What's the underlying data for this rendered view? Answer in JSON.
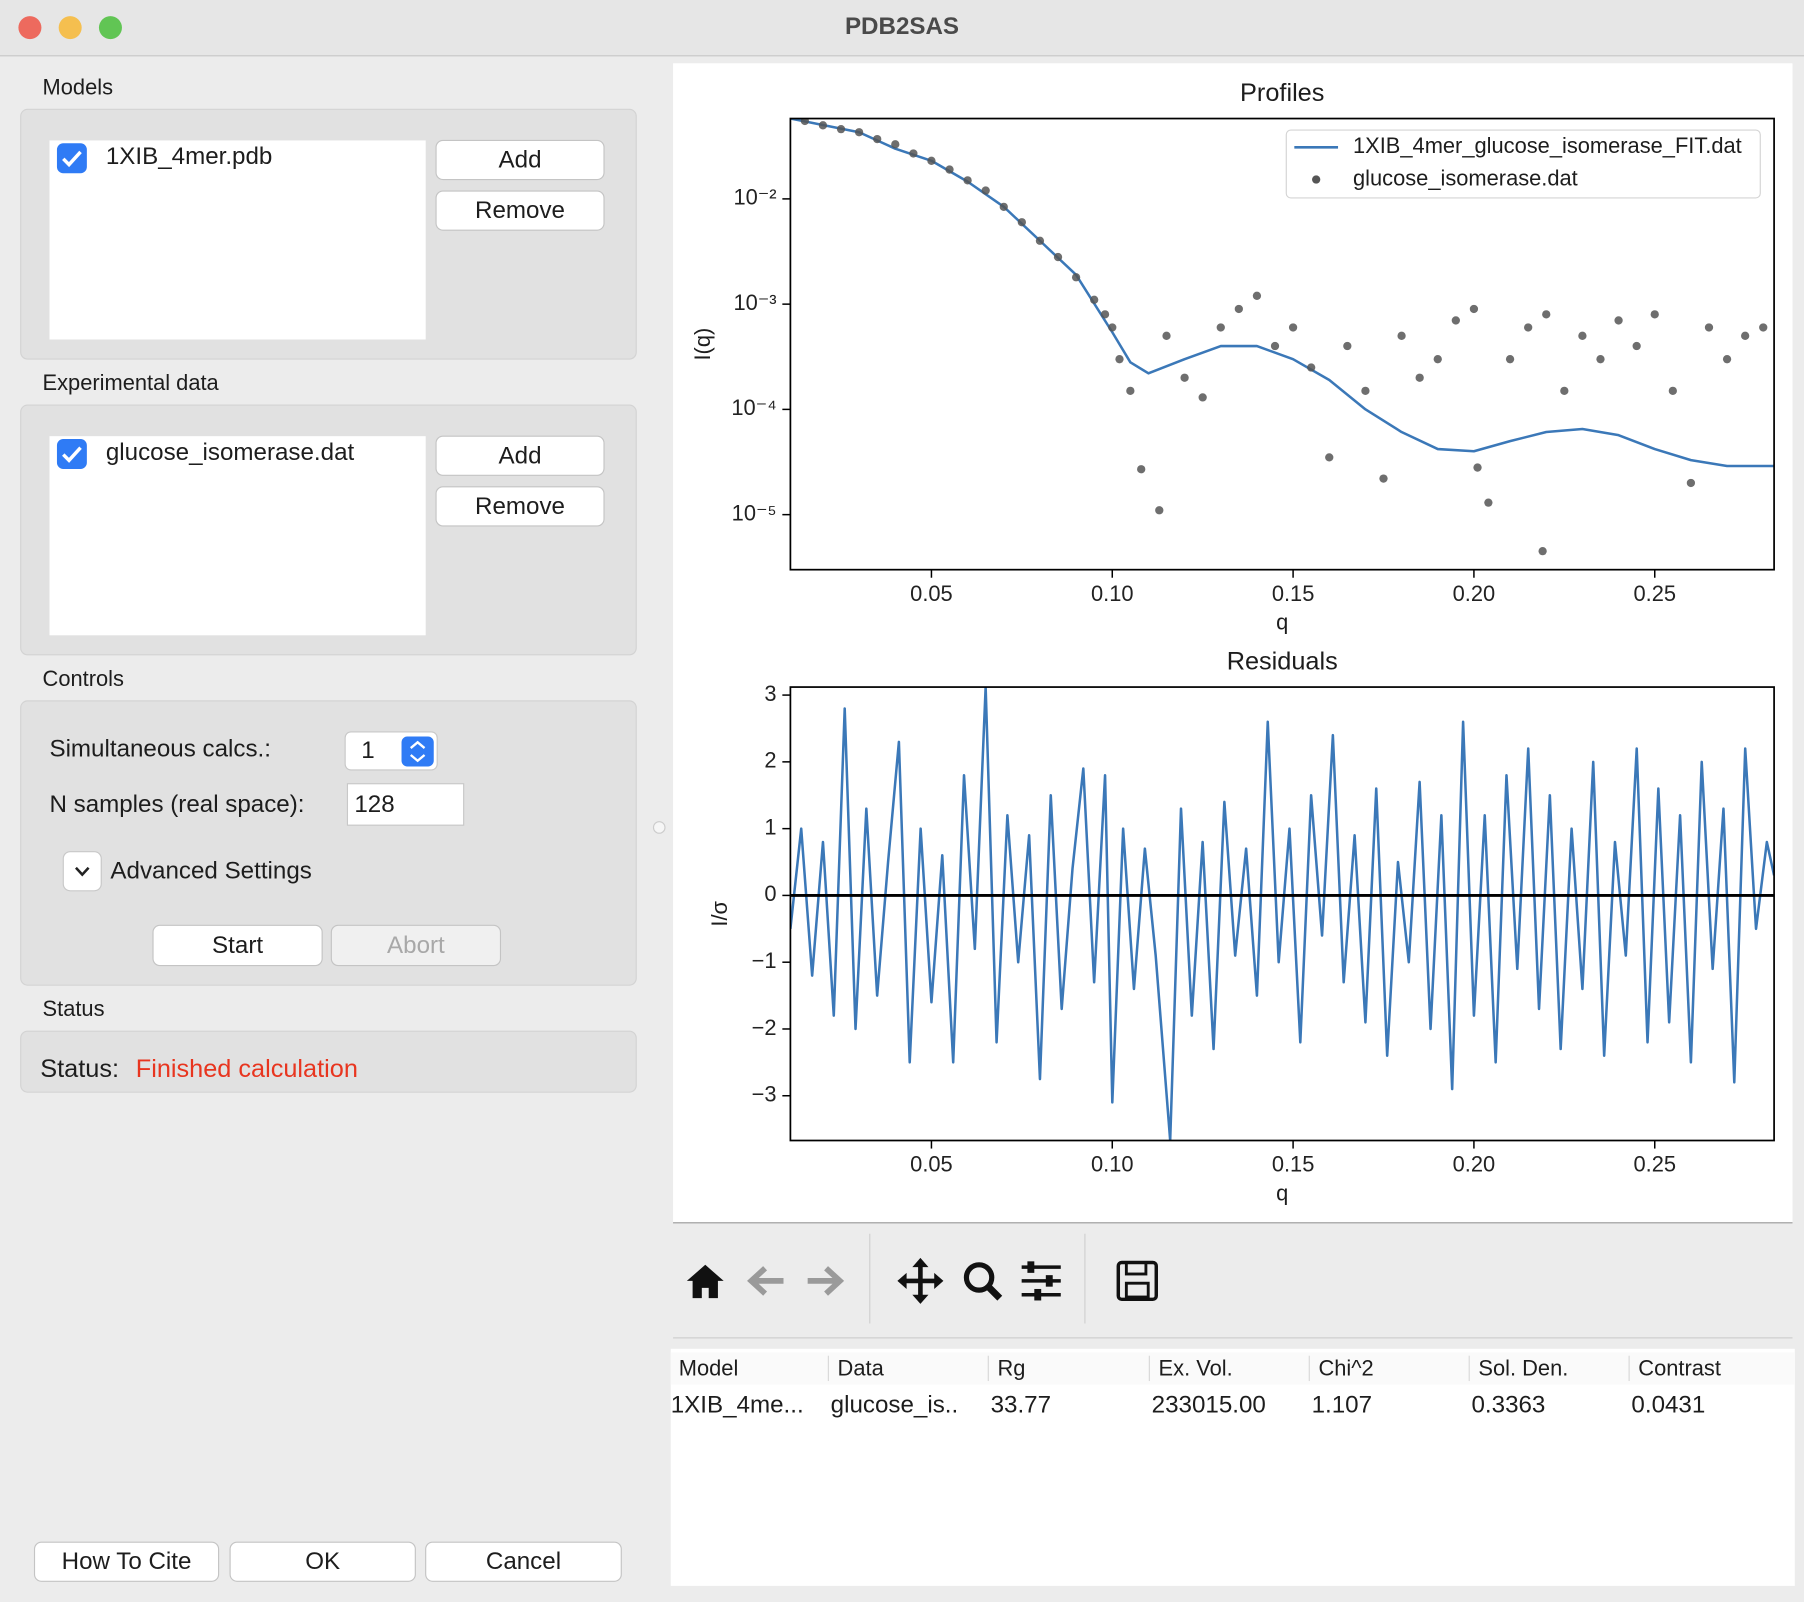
{
  "window": {
    "title": "PDB2SAS"
  },
  "models": {
    "label": "Models",
    "items": [
      {
        "name": "1XIB_4mer.pdb",
        "checked": true
      }
    ],
    "buttons": [
      "Add",
      "Remove"
    ]
  },
  "experimental_data": {
    "label": "Experimental data",
    "items": [
      {
        "name": "glucose_isomerase.dat",
        "checked": true
      }
    ],
    "buttons": [
      "Add",
      "Remove"
    ]
  },
  "controls": {
    "label": "Controls",
    "simultaneous_calcs": {
      "label": "Simultaneous calcs.:",
      "value": "1"
    },
    "n_samples": {
      "label": "N samples (real space):",
      "value": "128"
    },
    "advanced": "Advanced Settings",
    "buttons": [
      {
        "label": "Start",
        "enabled": true
      },
      {
        "label": "Abort",
        "enabled": false
      }
    ]
  },
  "status": {
    "label": "Status",
    "prefix": "Status:",
    "message": "Finished calculation",
    "color": "#e8351f"
  },
  "footer_buttons": [
    "How To Cite",
    "OK",
    "Cancel"
  ],
  "chart_data": [
    {
      "type": "line",
      "title": "Profiles",
      "x_label": "q",
      "y_label": "I(q)",
      "log_y": true,
      "legend": "upper right",
      "xlim": [
        0.011,
        0.283
      ],
      "ylim": [
        3e-06,
        0.058
      ],
      "xticks": [
        0.05,
        {
          "value": 0.1,
          "label": "0.10"
        },
        0.15,
        {
          "value": 0.2,
          "label": "0.20"
        },
        0.25
      ],
      "yticks": [
        {
          "value": 0.01,
          "label": "10⁻²"
        },
        {
          "value": 0.001,
          "label": "10⁻³"
        },
        {
          "value": 0.0001,
          "label": "10⁻⁴"
        },
        {
          "value": 1e-05,
          "label": "10⁻⁵"
        }
      ],
      "series": [
        {
          "name": "1XIB_4mer_glucose_isomerase_FIT.dat",
          "color": "#3b78b8",
          "style": "line",
          "x": [
            0.011,
            0.03,
            0.04,
            0.05,
            0.06,
            0.07,
            0.08,
            0.09,
            0.1,
            0.105,
            0.11,
            0.12,
            0.13,
            0.14,
            0.15,
            0.16,
            0.17,
            0.18,
            0.19,
            0.2,
            0.21,
            0.22,
            0.23,
            0.24,
            0.25,
            0.26,
            0.27,
            0.283
          ],
          "values": [
            0.058,
            0.043,
            0.03,
            0.023,
            0.0146,
            0.0084,
            0.004,
            0.0019,
            0.00054,
            0.00028,
            0.00022,
            0.0003,
            0.0004,
            0.0004,
            0.0003,
            0.00019,
            0.0001,
            6.1e-05,
            4.2e-05,
            4e-05,
            5e-05,
            6.1e-05,
            6.5e-05,
            5.7e-05,
            4.2e-05,
            3.3e-05,
            2.9e-05,
            2.9e-05
          ]
        },
        {
          "name": "glucose_isomerase.dat",
          "color": "#555555",
          "style": "dots",
          "x": [
            0.015,
            0.02,
            0.025,
            0.03,
            0.035,
            0.04,
            0.045,
            0.05,
            0.055,
            0.06,
            0.065,
            0.07,
            0.075,
            0.08,
            0.085,
            0.09,
            0.095,
            0.098,
            0.1,
            0.102,
            0.105,
            0.108,
            0.113,
            0.115,
            0.12,
            0.125,
            0.13,
            0.135,
            0.14,
            0.145,
            0.15,
            0.155,
            0.16,
            0.165,
            0.17,
            0.175,
            0.18,
            0.185,
            0.19,
            0.195,
            0.2,
            0.201,
            0.204,
            0.21,
            0.215,
            0.219,
            0.22,
            0.225,
            0.23,
            0.235,
            0.24,
            0.245,
            0.25,
            0.255,
            0.26,
            0.265,
            0.27,
            0.275,
            0.28
          ],
          "values": [
            0.055,
            0.05,
            0.046,
            0.043,
            0.037,
            0.033,
            0.027,
            0.023,
            0.019,
            0.015,
            0.012,
            0.0084,
            0.006,
            0.004,
            0.0028,
            0.0018,
            0.0011,
            0.0008,
            0.0006,
            0.0003,
            0.00015,
            2.7e-05,
            1.1e-05,
            0.0005,
            0.0002,
            0.00013,
            0.0006,
            0.0009,
            0.0012,
            0.0004,
            0.0006,
            0.00025,
            3.5e-05,
            0.0004,
            0.00015,
            2.2e-05,
            0.0005,
            0.0002,
            0.0003,
            0.0007,
            0.0009,
            2.8e-05,
            1.3e-05,
            0.0003,
            0.0006,
            4.5e-06,
            0.0008,
            0.00015,
            0.0005,
            0.0003,
            0.0007,
            0.0004,
            0.0008,
            0.00015,
            2e-05,
            0.0006,
            0.0003,
            0.0005,
            0.0006
          ]
        }
      ]
    },
    {
      "type": "line",
      "title": "Residuals",
      "x_label": "q",
      "y_label": "I/σ",
      "xlim": [
        0.011,
        0.283
      ],
      "ylim": [
        -3.67,
        3.12
      ],
      "xticks": [
        0.05,
        {
          "value": 0.1,
          "label": "0.10"
        },
        0.15,
        {
          "value": 0.2,
          "label": "0.20"
        },
        0.25
      ],
      "yticks": [
        3,
        2,
        1,
        0,
        {
          "value": -1,
          "label": "−1"
        },
        {
          "value": -2,
          "label": "−2"
        },
        {
          "value": -3,
          "label": "−3"
        }
      ],
      "reference_line": {
        "value": 0,
        "color": "#000000"
      },
      "x": [
        0.011,
        0.014,
        0.017,
        0.02,
        0.023,
        0.026,
        0.029,
        0.032,
        0.035,
        0.038,
        0.041,
        0.044,
        0.047,
        0.05,
        0.053,
        0.056,
        0.059,
        0.062,
        0.065,
        0.068,
        0.071,
        0.074,
        0.077,
        0.08,
        0.083,
        0.086,
        0.089,
        0.092,
        0.095,
        0.098,
        0.1,
        0.103,
        0.106,
        0.109,
        0.112,
        0.116,
        0.119,
        0.122,
        0.125,
        0.128,
        0.131,
        0.134,
        0.137,
        0.14,
        0.143,
        0.146,
        0.149,
        0.152,
        0.155,
        0.158,
        0.161,
        0.164,
        0.167,
        0.17,
        0.173,
        0.176,
        0.179,
        0.182,
        0.185,
        0.188,
        0.191,
        0.194,
        0.197,
        0.2,
        0.203,
        0.206,
        0.209,
        0.212,
        0.215,
        0.218,
        0.221,
        0.224,
        0.227,
        0.23,
        0.233,
        0.236,
        0.239,
        0.242,
        0.245,
        0.248,
        0.251,
        0.254,
        0.257,
        0.26,
        0.263,
        0.266,
        0.269,
        0.272,
        0.275,
        0.278,
        0.281,
        0.283
      ],
      "series": [
        {
          "color": "#3b78b8",
          "values": [
            -0.5,
            1.0,
            -1.2,
            0.8,
            -1.8,
            2.8,
            -2.0,
            1.3,
            -1.5,
            0.5,
            2.3,
            -2.5,
            1.0,
            -1.6,
            0.6,
            -2.5,
            1.8,
            -0.8,
            3.12,
            -2.2,
            1.2,
            -1.0,
            0.9,
            -2.75,
            1.5,
            -1.7,
            0.4,
            1.9,
            -1.3,
            1.8,
            -3.1,
            1.0,
            -1.4,
            0.7,
            -0.9,
            -3.67,
            1.3,
            -1.8,
            0.8,
            -2.3,
            1.4,
            -0.9,
            0.7,
            -1.5,
            2.6,
            -1.0,
            1.0,
            -2.2,
            1.5,
            -0.6,
            2.4,
            -1.3,
            0.9,
            -1.9,
            1.6,
            -2.4,
            0.5,
            -1.0,
            1.7,
            -2.0,
            1.2,
            -2.9,
            2.6,
            -1.8,
            1.2,
            -2.5,
            1.8,
            -1.1,
            2.2,
            -1.7,
            1.5,
            -2.3,
            1.0,
            -1.4,
            2.0,
            -2.4,
            0.8,
            -0.9,
            2.2,
            -2.2,
            1.6,
            -1.9,
            1.2,
            -2.5,
            2.0,
            -1.1,
            1.3,
            -2.8,
            2.2,
            -0.5,
            0.8,
            0.3
          ]
        }
      ]
    }
  ],
  "table": {
    "columns": [
      "Model",
      "Data",
      "Rg",
      "Ex. Vol.",
      "Chi^2",
      "Sol. Den.",
      "Contrast"
    ],
    "rows": [
      [
        "1XIB_4me...",
        "glucose_is..",
        "33.77",
        "233015.00",
        "1.107",
        "0.3363",
        "0.0431"
      ]
    ]
  }
}
